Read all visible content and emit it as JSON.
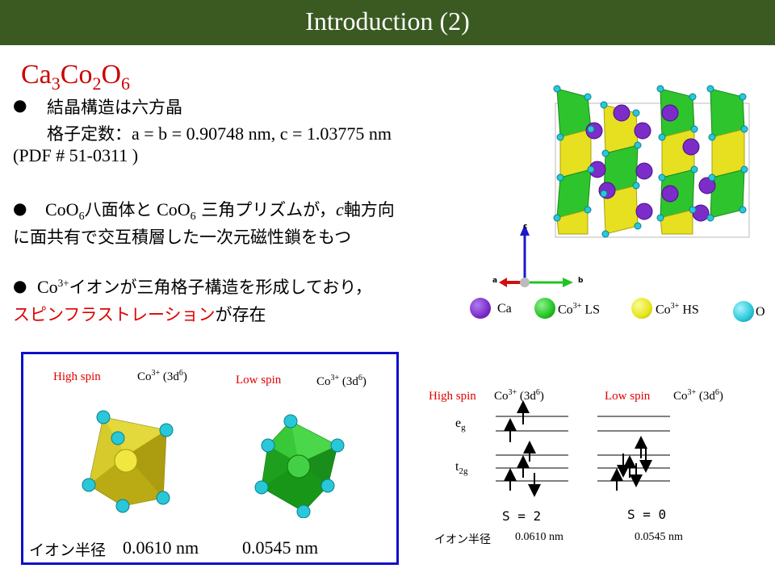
{
  "title": "Introduction (2)",
  "formula": {
    "a": "Ca",
    "a_sub": "3",
    "b": "Co",
    "b_sub": "2",
    "c": "O",
    "c_sub": "6"
  },
  "bullets": {
    "b1_line1": "結晶構造は六方晶",
    "b1_line2_prefix": "格子定数：",
    "b1_line2_values": "a = b = 0.90748 nm,  c = 1.03775 nm",
    "b1_line3": "(PDF # 51-0311 )",
    "b2_line1_a": "CoO",
    "b2_line1_sub": "6",
    "b2_line1_b": "八面体と",
    "b2_line1_c": " CoO",
    "b2_line1_sub2": "6",
    "b2_line1_d": " 三角プリズムが，",
    "b2_line1_e": "c",
    "b2_line1_f": "軸方向",
    "b2_line2": "に面共有で交互積層した一次元磁性鎖をもつ",
    "b3_line1_a": "Co",
    "b3_line1_sup": "3+",
    "b3_line1_b": "イオンが三角格子構造を形成しており，",
    "b3_line2_red": "スピンフラストレーション",
    "b3_line2_black": "が存在"
  },
  "axes": {
    "c": "c",
    "a": "a",
    "b": "b"
  },
  "legend": [
    {
      "label": "Ca",
      "color": "#7b2cc9"
    },
    {
      "label": "Co3+ LS",
      "color": "#22c422"
    },
    {
      "label": "Co3+ HS",
      "color": "#e6e61a"
    },
    {
      "label": "O",
      "color": "#28c8d8"
    }
  ],
  "legend_text": {
    "ca": "Ca",
    "ls_co": "Co",
    "ls_sup": "3+",
    "ls_tail": " LS",
    "hs_co": "Co",
    "hs_sup": "3+",
    "hs_tail": " HS",
    "o": "O"
  },
  "box": {
    "high_label": "High  spin",
    "low_label": "Low spin",
    "co_ion": "Co",
    "co_sup": "3+",
    "co_conf": "(3d",
    "co_conf_sup": "6",
    "co_close": ")",
    "radius_label": "イオン半径",
    "radius_high": "0.0610 nm",
    "radius_low": "0.0545 nm"
  },
  "energy": {
    "high_label": "High spin",
    "low_label": "Low spin",
    "eg": "e",
    "eg_sub": "g",
    "t2g": "t",
    "t2g_sub": "2g",
    "s_high": "S = 2",
    "s_low": "S = 0",
    "radius_label": "イオン半径",
    "radius_high": "0.0610 nm",
    "radius_low": "0.0545 nm"
  }
}
